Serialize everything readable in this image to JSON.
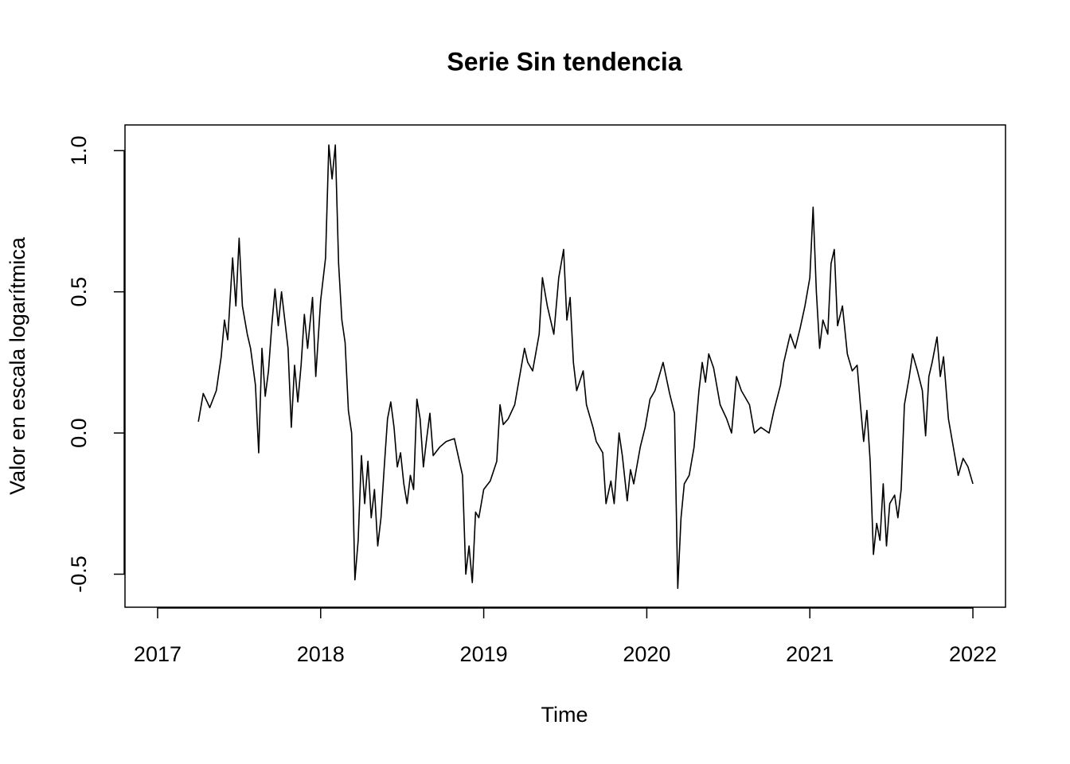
{
  "chart_data": {
    "type": "line",
    "title": "Serie Sin tendencia",
    "x_label": "Time",
    "y_label": "Valor en escala logarítmica",
    "color": "#000000",
    "xlim": [
      2016.8,
      2022.2
    ],
    "xticks": [
      2017,
      2018,
      2019,
      2020,
      2021,
      2022
    ],
    "ylim": [
      -0.617,
      1.091
    ],
    "yticks": [
      {
        "value": -0.5,
        "label": "-0.5"
      },
      {
        "value": 0,
        "label": "0.0"
      },
      {
        "value": 0.5,
        "label": "0.5"
      },
      {
        "value": 1,
        "label": "1.0"
      }
    ],
    "x": [
      2017.25,
      2017.28,
      2017.32,
      2017.36,
      2017.39,
      2017.41,
      2017.43,
      2017.46,
      2017.48,
      2017.5,
      2017.52,
      2017.55,
      2017.57,
      2017.6,
      2017.62,
      2017.64,
      2017.66,
      2017.68,
      2017.7,
      2017.72,
      2017.74,
      2017.76,
      2017.8,
      2017.82,
      2017.84,
      2017.86,
      2017.88,
      2017.9,
      2017.92,
      2017.95,
      2017.97,
      2018.0,
      2018.03,
      2018.05,
      2018.07,
      2018.09,
      2018.11,
      2018.13,
      2018.15,
      2018.17,
      2018.19,
      2018.21,
      2018.23,
      2018.25,
      2018.27,
      2018.29,
      2018.31,
      2018.33,
      2018.35,
      2018.37,
      2018.39,
      2018.41,
      2018.43,
      2018.45,
      2018.47,
      2018.49,
      2018.51,
      2018.53,
      2018.55,
      2018.57,
      2018.59,
      2018.61,
      2018.63,
      2018.65,
      2018.67,
      2018.69,
      2018.73,
      2018.77,
      2018.82,
      2018.87,
      2018.89,
      2018.91,
      2018.93,
      2018.95,
      2018.97,
      2019.0,
      2019.04,
      2019.08,
      2019.1,
      2019.12,
      2019.15,
      2019.19,
      2019.25,
      2019.27,
      2019.3,
      2019.34,
      2019.36,
      2019.39,
      2019.43,
      2019.46,
      2019.49,
      2019.51,
      2019.53,
      2019.55,
      2019.57,
      2019.61,
      2019.63,
      2019.67,
      2019.69,
      2019.73,
      2019.75,
      2019.78,
      2019.8,
      2019.83,
      2019.85,
      2019.88,
      2019.9,
      2019.92,
      2019.96,
      2019.99,
      2020.02,
      2020.05,
      2020.1,
      2020.14,
      2020.17,
      2020.19,
      2020.21,
      2020.23,
      2020.26,
      2020.29,
      2020.32,
      2020.34,
      2020.36,
      2020.38,
      2020.41,
      2020.45,
      2020.49,
      2020.52,
      2020.55,
      2020.58,
      2020.63,
      2020.66,
      2020.7,
      2020.75,
      2020.78,
      2020.82,
      2020.84,
      2020.88,
      2020.91,
      2020.94,
      2020.97,
      2021.0,
      2021.02,
      2021.04,
      2021.06,
      2021.08,
      2021.11,
      2021.13,
      2021.15,
      2021.17,
      2021.2,
      2021.23,
      2021.26,
      2021.29,
      2021.31,
      2021.33,
      2021.35,
      2021.37,
      2021.39,
      2021.41,
      2021.43,
      2021.45,
      2021.47,
      2021.49,
      2021.52,
      2021.54,
      2021.56,
      2021.58,
      2021.61,
      2021.63,
      2021.66,
      2021.69,
      2021.71,
      2021.73,
      2021.75,
      2021.78,
      2021.8,
      2021.82,
      2021.85,
      2021.88,
      2021.91,
      2021.94,
      2021.97,
      2022.0
    ],
    "values": [
      0.04,
      0.14,
      0.09,
      0.15,
      0.27,
      0.4,
      0.33,
      0.62,
      0.45,
      0.69,
      0.45,
      0.35,
      0.3,
      0.17,
      -0.07,
      0.3,
      0.13,
      0.22,
      0.38,
      0.51,
      0.38,
      0.5,
      0.3,
      0.02,
      0.24,
      0.11,
      0.24,
      0.42,
      0.3,
      0.48,
      0.2,
      0.47,
      0.62,
      1.02,
      0.9,
      1.02,
      0.6,
      0.4,
      0.32,
      0.08,
      0.0,
      -0.52,
      -0.38,
      -0.08,
      -0.25,
      -0.1,
      -0.3,
      -0.2,
      -0.4,
      -0.3,
      -0.12,
      0.05,
      0.11,
      0.02,
      -0.12,
      -0.07,
      -0.18,
      -0.25,
      -0.15,
      -0.2,
      0.12,
      0.05,
      -0.12,
      -0.02,
      0.07,
      -0.08,
      -0.05,
      -0.03,
      -0.02,
      -0.15,
      -0.5,
      -0.4,
      -0.53,
      -0.28,
      -0.3,
      -0.2,
      -0.17,
      -0.1,
      0.1,
      0.03,
      0.05,
      0.1,
      0.3,
      0.25,
      0.22,
      0.35,
      0.55,
      0.45,
      0.35,
      0.55,
      0.65,
      0.4,
      0.48,
      0.25,
      0.15,
      0.22,
      0.1,
      0.02,
      -0.03,
      -0.07,
      -0.25,
      -0.17,
      -0.25,
      0.0,
      -0.08,
      -0.24,
      -0.13,
      -0.18,
      -0.05,
      0.02,
      0.12,
      0.15,
      0.25,
      0.14,
      0.07,
      -0.55,
      -0.3,
      -0.18,
      -0.15,
      -0.05,
      0.15,
      0.25,
      0.18,
      0.28,
      0.23,
      0.1,
      0.05,
      0.0,
      0.2,
      0.15,
      0.1,
      0.0,
      0.02,
      0.0,
      0.08,
      0.17,
      0.25,
      0.35,
      0.3,
      0.37,
      0.45,
      0.55,
      0.8,
      0.5,
      0.3,
      0.4,
      0.35,
      0.6,
      0.65,
      0.38,
      0.45,
      0.28,
      0.22,
      0.24,
      0.1,
      -0.03,
      0.08,
      -0.1,
      -0.43,
      -0.32,
      -0.38,
      -0.18,
      -0.4,
      -0.25,
      -0.22,
      -0.3,
      -0.2,
      0.1,
      0.2,
      0.28,
      0.22,
      0.15,
      -0.01,
      0.2,
      0.25,
      0.34,
      0.2,
      0.27,
      0.05,
      -0.05,
      -0.15,
      -0.09,
      -0.12,
      -0.18
    ]
  }
}
